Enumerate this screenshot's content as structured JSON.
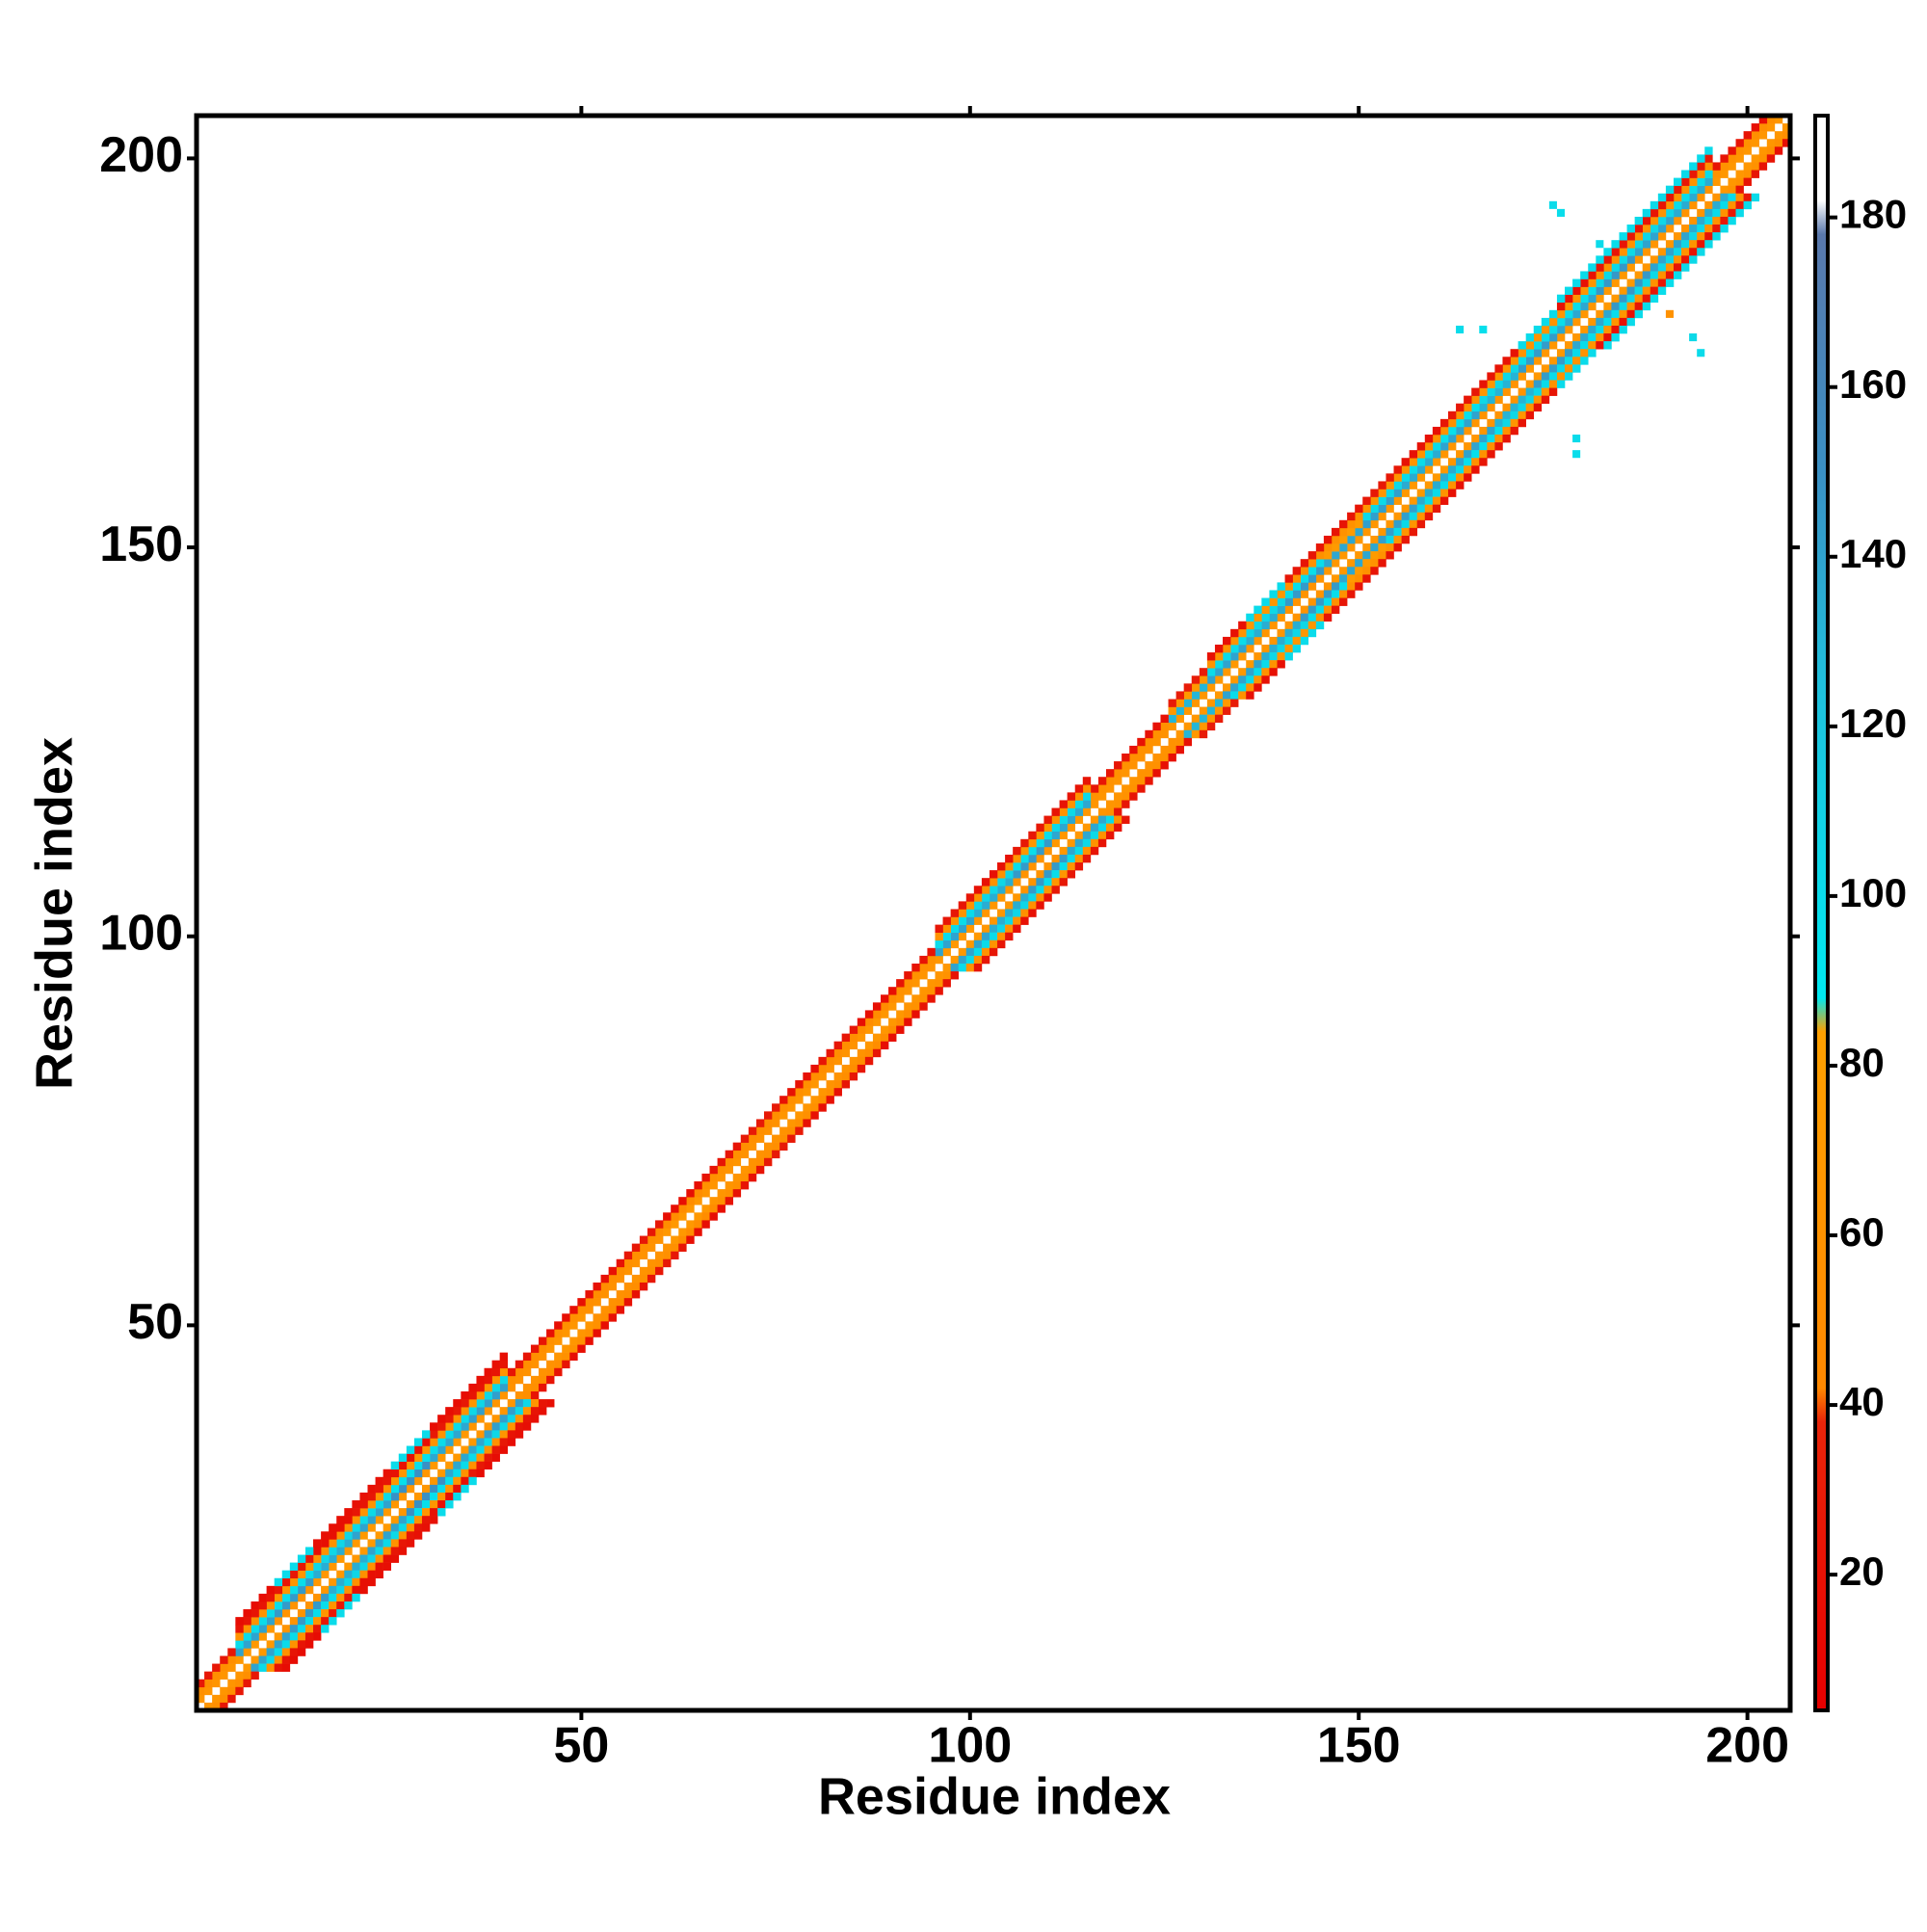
{
  "chart_data": {
    "type": "heatmap",
    "xlabel": "Residue index",
    "ylabel": "Residue index",
    "xlim": [
      0.5,
      205.5
    ],
    "ylim": [
      0.5,
      205.5
    ],
    "xticks": [
      50,
      100,
      150,
      200
    ],
    "yticks": [
      50,
      100,
      150,
      200
    ],
    "x": [
      1,
      6,
      11,
      16,
      21,
      26,
      31,
      36,
      41,
      46,
      51,
      56,
      61,
      66,
      71,
      76,
      81,
      86,
      91,
      96,
      101,
      106,
      111,
      116,
      121,
      126,
      131,
      136,
      141,
      146,
      151,
      156,
      161,
      166,
      171,
      176,
      181,
      186,
      191,
      196,
      201
    ],
    "bin_width": 5,
    "diagonals": [
      {
        "offset": 0,
        "values": [
          190,
          190,
          190,
          190,
          190,
          190,
          190,
          190,
          190,
          190,
          190,
          190,
          190,
          190,
          190,
          190,
          190,
          190,
          190,
          190,
          190,
          190,
          190,
          190,
          190,
          190,
          190,
          190,
          190,
          190,
          190,
          190,
          190,
          190,
          190,
          190,
          190,
          190,
          190,
          190,
          190
        ]
      },
      {
        "offset": 1,
        "values": [
          65,
          70,
          62,
          68,
          72,
          66,
          70,
          64,
          60,
          66,
          58,
          62,
          70,
          64,
          60,
          66,
          62,
          68,
          64,
          70,
          66,
          62,
          68,
          64,
          60,
          66,
          70,
          64,
          62,
          68,
          66,
          70,
          64,
          62,
          68,
          66,
          70,
          64,
          62,
          68,
          66
        ]
      },
      {
        "offset": 2,
        "values": [
          55,
          140,
          145,
          135,
          140,
          150,
          138,
          142,
          55,
          58,
          52,
          56,
          50,
          58,
          54,
          56,
          52,
          50,
          60,
          140,
          135,
          145,
          138,
          60,
          58,
          130,
          140,
          135,
          145,
          138,
          142,
          136,
          140,
          132,
          144,
          138,
          146,
          140,
          136,
          60,
          55
        ]
      },
      {
        "offset": 3,
        "values": [
          25,
          100,
          98,
          105,
          102,
          96,
          100,
          104,
          22,
          18,
          20,
          25,
          18,
          22,
          28,
          20,
          24,
          18,
          22,
          100,
          105,
          98,
          102,
          24,
          20,
          70,
          100,
          104,
          98,
          75,
          102,
          100,
          96,
          104,
          100,
          98,
          102,
          105,
          100,
          22,
          18
        ]
      },
      {
        "offset": 4,
        "values": [
          null,
          60,
          65,
          58,
          62,
          66,
          60,
          64,
          null,
          null,
          null,
          null,
          null,
          null,
          null,
          null,
          null,
          null,
          null,
          62,
          58,
          66,
          60,
          null,
          null,
          30,
          62,
          66,
          58,
          60,
          64,
          62,
          58,
          66,
          60,
          64,
          58,
          62,
          60,
          null,
          null
        ]
      },
      {
        "offset": 5,
        "values": [
          null,
          22,
          25,
          18,
          24,
          20,
          26,
          22,
          null,
          null,
          null,
          null,
          null,
          null,
          null,
          null,
          null,
          null,
          null,
          24,
          20,
          26,
          22,
          null,
          null,
          null,
          20,
          100,
          24,
          22,
          26,
          20,
          24,
          22,
          100,
          20,
          24,
          22,
          26,
          null,
          null
        ]
      },
      {
        "offset": 6,
        "values": [
          null,
          15,
          100,
          18,
          20,
          100,
          16,
          18,
          null,
          null,
          null,
          null,
          null,
          null,
          null,
          null,
          null,
          null,
          null,
          null,
          null,
          null,
          null,
          null,
          null,
          null,
          null,
          null,
          null,
          null,
          null,
          null,
          null,
          null,
          null,
          100,
          98,
          102,
          100,
          null,
          null
        ]
      }
    ],
    "cells": {
      "x": [
        175,
        176,
        194,
        193,
        178,
        178,
        163,
        166,
        190,
        181
      ],
      "y": [
        194,
        193,
        175,
        177,
        164,
        162,
        178,
        178,
        180,
        189
      ],
      "values": [
        100,
        98,
        100,
        102,
        100,
        98,
        100,
        96,
        60,
        100
      ]
    },
    "clim": [
      4,
      192
    ],
    "cticks": [
      20,
      40,
      60,
      80,
      100,
      120,
      140,
      160,
      180
    ],
    "colorscale": [
      [
        4,
        "#e60000"
      ],
      [
        38,
        "#e8250a"
      ],
      [
        42,
        "#ff8800"
      ],
      [
        84,
        "#ffa000"
      ],
      [
        88,
        "#00e8f0"
      ],
      [
        125,
        "#20c0dc"
      ],
      [
        150,
        "#3a90c4"
      ],
      [
        178,
        "#5a78ac"
      ],
      [
        182,
        "#ffffff"
      ],
      [
        192,
        "#ffffff"
      ]
    ]
  }
}
